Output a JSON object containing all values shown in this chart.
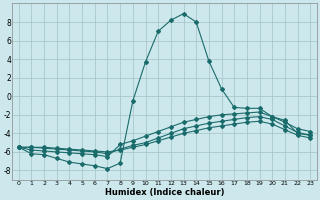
{
  "xlabel": "Humidex (Indice chaleur)",
  "background_color": "#cce8ec",
  "grid_color": "#aac8cc",
  "line_color": "#1a6b6b",
  "xlim": [
    -0.5,
    23.5
  ],
  "ylim": [
    -9,
    10
  ],
  "yticks": [
    -8,
    -6,
    -4,
    -2,
    0,
    2,
    4,
    6,
    8
  ],
  "xticks": [
    0,
    1,
    2,
    3,
    4,
    5,
    6,
    7,
    8,
    9,
    10,
    11,
    12,
    13,
    14,
    15,
    16,
    17,
    18,
    19,
    20,
    21,
    22,
    23
  ],
  "line1_x": [
    0,
    1,
    2,
    3,
    4,
    5,
    6,
    7,
    8,
    9,
    10,
    11,
    12,
    13,
    14,
    15,
    16,
    17,
    18,
    19,
    20,
    21,
    22,
    23
  ],
  "line1_y": [
    -5.5,
    -6.2,
    -6.3,
    -6.7,
    -7.1,
    -7.3,
    -7.5,
    -7.8,
    -7.2,
    -0.5,
    3.7,
    7.0,
    8.2,
    8.9,
    8.0,
    3.8,
    0.8,
    -1.2,
    -1.3,
    -1.3,
    -2.2,
    -2.6,
    -4.0,
    -4.2
  ],
  "line2_x": [
    0,
    1,
    2,
    3,
    4,
    5,
    6,
    7,
    8,
    9,
    10,
    11,
    12,
    13,
    14,
    15,
    16,
    17,
    18,
    19,
    20,
    21,
    22,
    23
  ],
  "line2_y": [
    -5.5,
    -5.8,
    -5.9,
    -6.0,
    -6.1,
    -6.2,
    -6.3,
    -6.5,
    -5.2,
    -4.8,
    -4.3,
    -3.8,
    -3.3,
    -2.8,
    -2.5,
    -2.2,
    -2.0,
    -1.9,
    -1.8,
    -1.7,
    -2.2,
    -2.8,
    -3.5,
    -3.8
  ],
  "line3_x": [
    0,
    1,
    2,
    3,
    4,
    5,
    6,
    7,
    8,
    9,
    10,
    11,
    12,
    13,
    14,
    15,
    16,
    17,
    18,
    19,
    20,
    21,
    22,
    23
  ],
  "line3_y": [
    -5.5,
    -5.5,
    -5.6,
    -5.7,
    -5.8,
    -5.9,
    -6.0,
    -6.2,
    -5.7,
    -5.3,
    -5.0,
    -4.5,
    -4.0,
    -3.5,
    -3.2,
    -2.9,
    -2.7,
    -2.5,
    -2.3,
    -2.2,
    -2.5,
    -3.2,
    -3.9,
    -4.2
  ],
  "line4_x": [
    0,
    1,
    2,
    3,
    4,
    5,
    6,
    7,
    8,
    9,
    10,
    11,
    12,
    13,
    14,
    15,
    16,
    17,
    18,
    19,
    20,
    21,
    22,
    23
  ],
  "line4_y": [
    -5.5,
    -5.5,
    -5.5,
    -5.6,
    -5.7,
    -5.8,
    -5.9,
    -6.0,
    -5.8,
    -5.5,
    -5.2,
    -4.8,
    -4.4,
    -4.0,
    -3.7,
    -3.4,
    -3.2,
    -3.0,
    -2.8,
    -2.7,
    -3.0,
    -3.6,
    -4.2,
    -4.5
  ]
}
